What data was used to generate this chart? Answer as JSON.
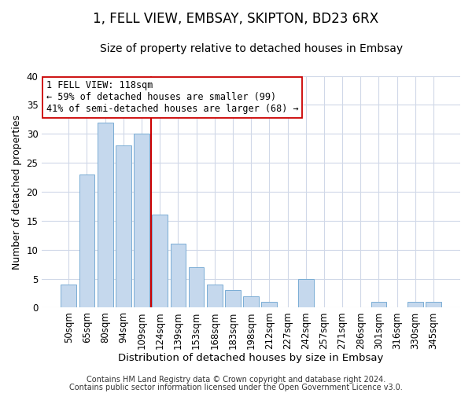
{
  "title": "1, FELL VIEW, EMBSAY, SKIPTON, BD23 6RX",
  "subtitle": "Size of property relative to detached houses in Embsay",
  "xlabel": "Distribution of detached houses by size in Embsay",
  "ylabel": "Number of detached properties",
  "bar_labels": [
    "50sqm",
    "65sqm",
    "80sqm",
    "94sqm",
    "109sqm",
    "124sqm",
    "139sqm",
    "153sqm",
    "168sqm",
    "183sqm",
    "198sqm",
    "212sqm",
    "227sqm",
    "242sqm",
    "257sqm",
    "271sqm",
    "286sqm",
    "301sqm",
    "316sqm",
    "330sqm",
    "345sqm"
  ],
  "bar_values": [
    4,
    23,
    32,
    28,
    30,
    16,
    11,
    7,
    4,
    3,
    2,
    1,
    0,
    5,
    0,
    0,
    0,
    1,
    0,
    1,
    1
  ],
  "bar_color": "#c5d8ed",
  "bar_edge_color": "#7aadd4",
  "vline_color": "#cc0000",
  "annotation_line1": "1 FELL VIEW: 118sqm",
  "annotation_line2": "← 59% of detached houses are smaller (99)",
  "annotation_line3": "41% of semi-detached houses are larger (68) →",
  "annotation_box_color": "#ffffff",
  "annotation_box_edge": "#cc0000",
  "ylim": [
    0,
    40
  ],
  "yticks": [
    0,
    5,
    10,
    15,
    20,
    25,
    30,
    35,
    40
  ],
  "footer1": "Contains HM Land Registry data © Crown copyright and database right 2024.",
  "footer2": "Contains public sector information licensed under the Open Government Licence v3.0.",
  "bg_color": "#ffffff",
  "grid_color": "#d0d8e8",
  "title_fontsize": 12,
  "subtitle_fontsize": 10,
  "xlabel_fontsize": 9.5,
  "ylabel_fontsize": 9,
  "tick_fontsize": 8.5,
  "annotation_fontsize": 8.5,
  "footer_fontsize": 7
}
